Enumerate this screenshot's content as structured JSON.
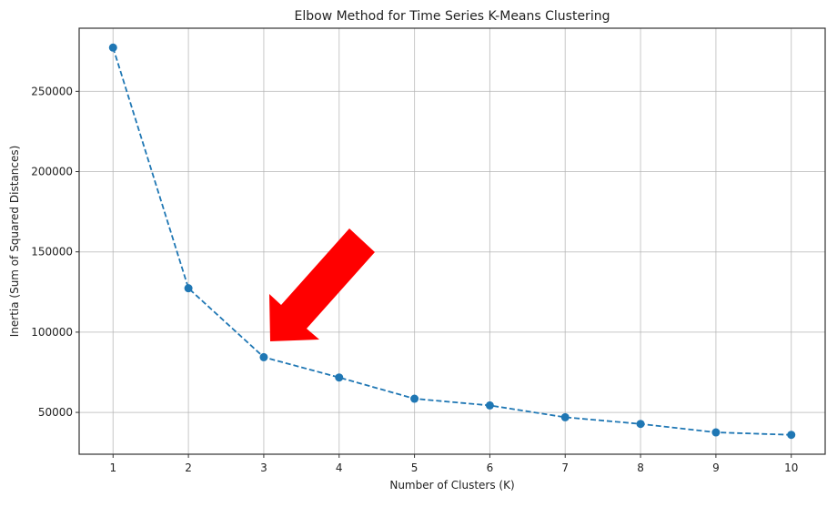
{
  "chart_data": {
    "type": "line",
    "title": "Elbow Method for Time Series K-Means Clustering",
    "xlabel": "Number of Clusters (K)",
    "ylabel": "Inertia (Sum of Squared Distances)",
    "x": [
      1,
      2,
      3,
      4,
      5,
      6,
      7,
      8,
      9,
      10
    ],
    "series": [
      {
        "values": [
          277250,
          127340,
          84400,
          71750,
          58540,
          54340,
          46970,
          42830,
          37550,
          36020
        ],
        "color": "#1f77b4",
        "linestyle": "dashed",
        "marker": "circle"
      }
    ],
    "xticks": [
      "1",
      "2",
      "3",
      "4",
      "5",
      "6",
      "7",
      "8",
      "9",
      "10"
    ],
    "yticks": [
      "50000",
      "100000",
      "150000",
      "200000",
      "250000"
    ],
    "xlim": [
      0.55,
      10.45
    ],
    "ylim": [
      23960,
      289310
    ],
    "grid": true,
    "annotation": {
      "type": "arrow",
      "color": "#ff0000",
      "points_to_x": 3
    }
  }
}
